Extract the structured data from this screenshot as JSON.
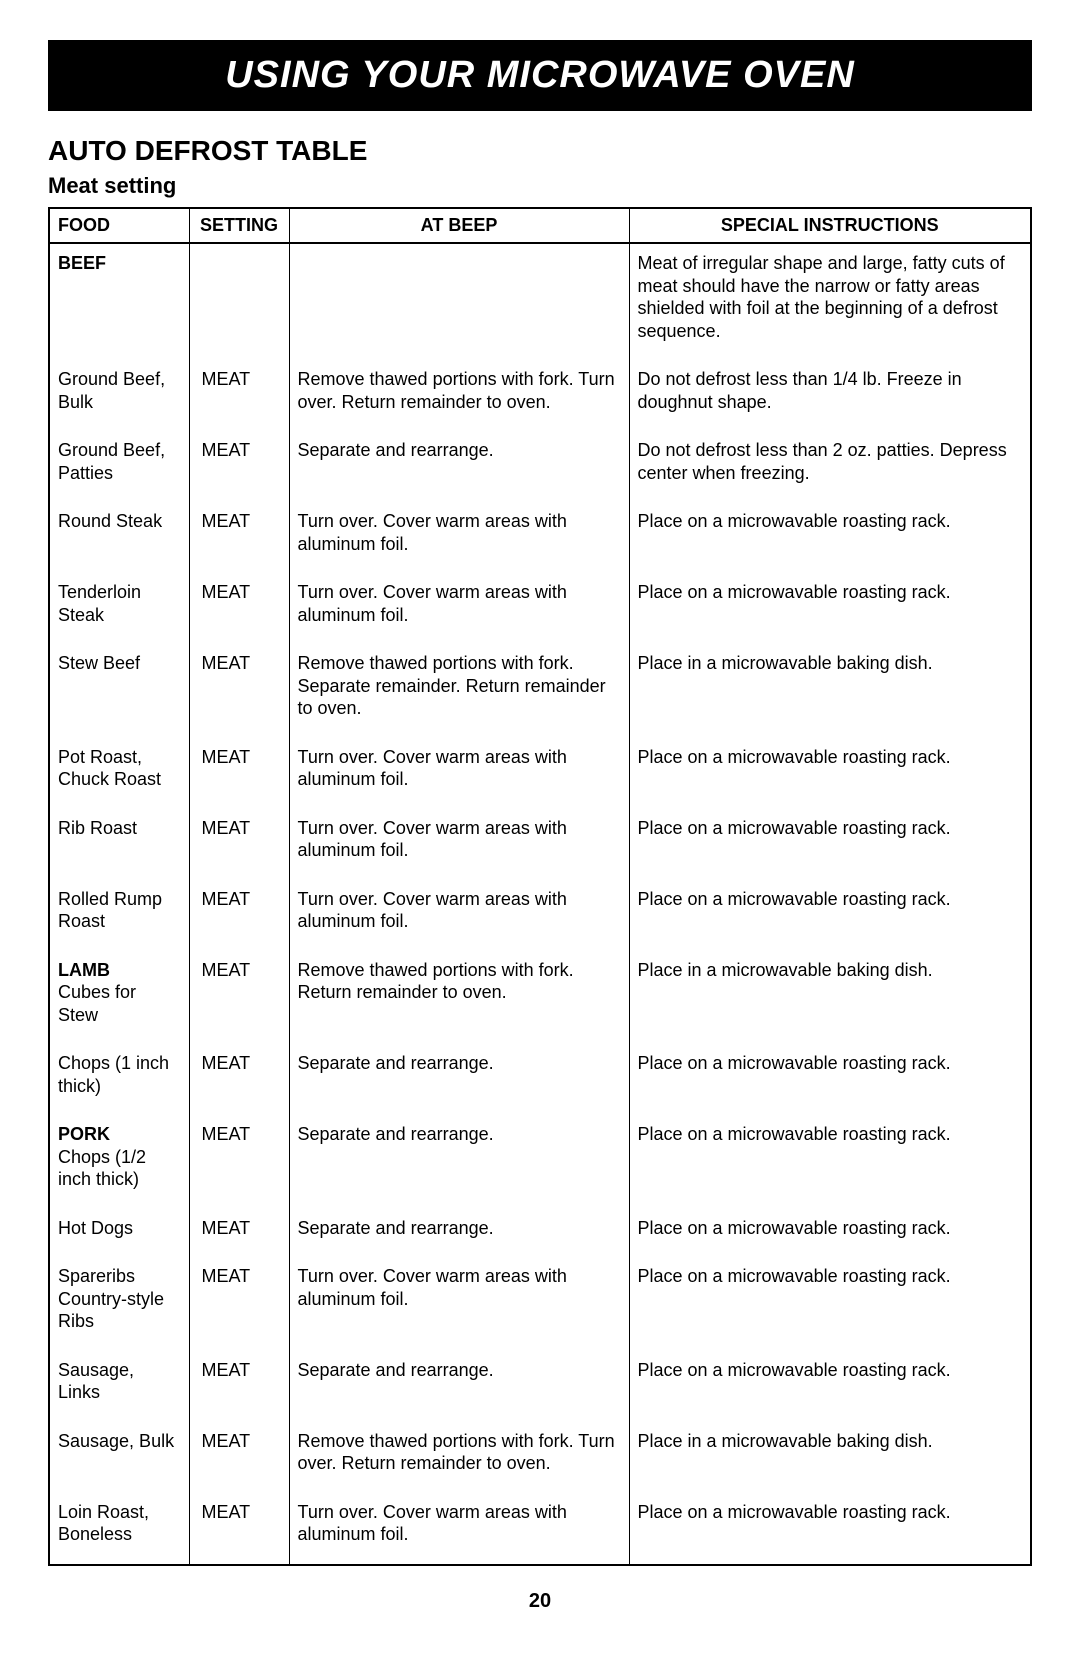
{
  "banner": "USING YOUR MICROWAVE OVEN",
  "section_title": "AUTO DEFROST TABLE",
  "subtitle": "Meat setting",
  "page_number": "20",
  "headers": {
    "food": "FOOD",
    "setting": "SETTING",
    "beep": "AT BEEP",
    "instr": "SPECIAL INSTRUCTIONS"
  },
  "rows": [
    {
      "category": "BEEF",
      "food": "",
      "setting": "",
      "beep": "",
      "instr": "Meat of irregular shape and large, fatty cuts of meat should have the narrow or fatty areas shielded with foil at the beginning of a defrost sequence."
    },
    {
      "food": "Ground Beef, Bulk",
      "setting": "MEAT",
      "beep": "Remove thawed portions with fork. Turn over. Return remainder to oven.",
      "instr": "Do not defrost less than 1/4 lb. Freeze in doughnut shape."
    },
    {
      "food": "Ground Beef, Patties",
      "setting": "MEAT",
      "beep": "Separate and rearrange.",
      "instr": "Do not defrost less than 2 oz. patties. Depress center when freezing."
    },
    {
      "food": "Round Steak",
      "setting": "MEAT",
      "beep": "Turn over. Cover warm areas with aluminum foil.",
      "instr": "Place on a microwavable roasting rack."
    },
    {
      "food": "Tenderloin Steak",
      "setting": "MEAT",
      "beep": "Turn over. Cover warm areas with aluminum foil.",
      "instr": "Place on a microwavable roasting rack."
    },
    {
      "food": "Stew Beef",
      "setting": "MEAT",
      "beep": "Remove thawed portions with fork. Separate remainder. Return remainder to oven.",
      "instr": "Place in a microwavable baking dish."
    },
    {
      "food": "Pot Roast, Chuck Roast",
      "setting": "MEAT",
      "beep": "Turn over. Cover warm areas with aluminum foil.",
      "instr": "Place on a microwavable roasting rack."
    },
    {
      "food": "Rib Roast",
      "setting": "MEAT",
      "beep": "Turn over. Cover warm areas with aluminum foil.",
      "instr": "Place on a microwavable roasting rack."
    },
    {
      "food": "Rolled Rump Roast",
      "setting": "MEAT",
      "beep": "Turn over. Cover warm areas with aluminum foil.",
      "instr": "Place on a microwavable roasting rack."
    },
    {
      "category": "LAMB",
      "food": "Cubes for Stew",
      "setting": "MEAT",
      "beep": "Remove thawed portions with fork. Return remainder to oven.",
      "instr": "Place in a microwavable baking dish."
    },
    {
      "food": "Chops (1 inch thick)",
      "setting": "MEAT",
      "beep": "Separate and rearrange.",
      "instr": "Place on a microwavable roasting rack."
    },
    {
      "category": "PORK",
      "food": "Chops (1/2 inch thick)",
      "setting": "MEAT",
      "beep": "Separate and rearrange.",
      "instr": "Place on a microwavable roasting rack."
    },
    {
      "food": "Hot Dogs",
      "setting": "MEAT",
      "beep": "Separate and rearrange.",
      "instr": "Place on a microwavable roasting rack."
    },
    {
      "food": "Spareribs Country-style Ribs",
      "setting": "MEAT",
      "beep": "Turn over. Cover warm areas with aluminum foil.",
      "instr": "Place on a microwavable roasting rack."
    },
    {
      "food": "Sausage, Links",
      "setting": "MEAT",
      "beep": "Separate and rearrange.",
      "instr": "Place on a microwavable roasting rack."
    },
    {
      "food": "Sausage, Bulk",
      "setting": "MEAT",
      "beep": "Remove thawed portions with fork. Turn over. Return remainder to oven.",
      "instr": "Place in a microwavable baking dish."
    },
    {
      "food": "Loin Roast, Boneless",
      "setting": "MEAT",
      "beep": "Turn over. Cover warm areas with aluminum foil.",
      "instr": "Place on a microwavable roasting rack."
    }
  ]
}
